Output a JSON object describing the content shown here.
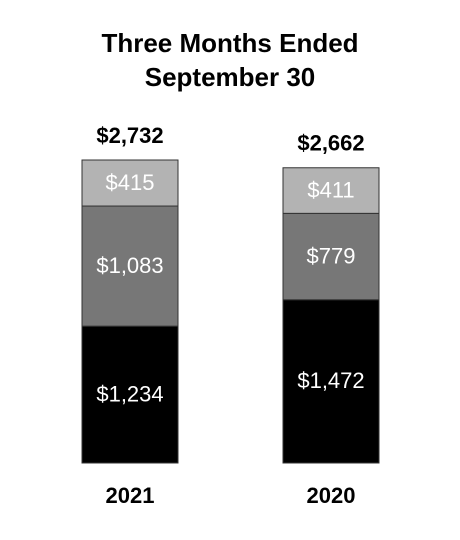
{
  "chart_data": {
    "type": "stacked_bar",
    "title": "Three Months Ended September 30",
    "categories": [
      "2021",
      "2020"
    ],
    "series": [
      {
        "color": "#000000",
        "values": [
          1234,
          1472
        ],
        "value_labels": [
          "$1,234",
          "$1,472"
        ]
      },
      {
        "color": "#777777",
        "values": [
          1083,
          779
        ],
        "value_labels": [
          "$1,083",
          "$779"
        ]
      },
      {
        "color": "#b3b3b3",
        "values": [
          415,
          411
        ],
        "value_labels": [
          "$415",
          "$411"
        ]
      }
    ],
    "totals": [
      2732,
      2662
    ],
    "total_labels": [
      "$2,732",
      "$2,662"
    ]
  }
}
